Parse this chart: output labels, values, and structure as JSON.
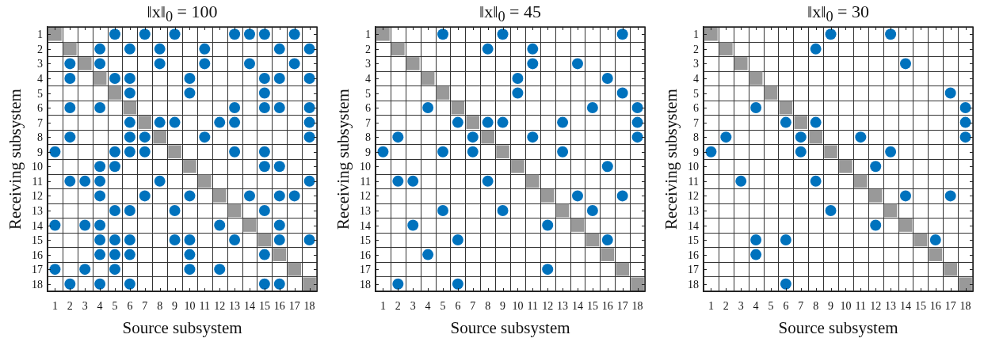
{
  "chart_data": [
    {
      "type": "scatter",
      "title": "‖x‖$_{0}$ = 100",
      "xlabel": "Source subsystem",
      "ylabel": "Receiving subsystem",
      "xlim": [
        0.5,
        18.5
      ],
      "ylim": [
        18.5,
        0.5
      ],
      "xticks": [
        {
          "value": 0.5,
          "label": null
        },
        1,
        {
          "value": 1.5,
          "label": null
        },
        2,
        {
          "value": 2.5,
          "label": null
        },
        3,
        {
          "value": 3.5,
          "label": null
        },
        4,
        {
          "value": 4.5,
          "label": null
        },
        5,
        {
          "value": 5.5,
          "label": null
        },
        6,
        {
          "value": 6.5,
          "label": null
        },
        7,
        {
          "value": 7.5,
          "label": null
        },
        8,
        {
          "value": 8.5,
          "label": null
        },
        9,
        {
          "value": 9.5,
          "label": null
        },
        10,
        {
          "value": 10.5,
          "label": null
        },
        11,
        {
          "value": 11.5,
          "label": null
        },
        12,
        {
          "value": 12.5,
          "label": null
        },
        13,
        {
          "value": 13.5,
          "label": null
        },
        14,
        {
          "value": 14.5,
          "label": null
        },
        15,
        {
          "value": 15.5,
          "label": null
        },
        16,
        {
          "value": 16.5,
          "label": null
        },
        17,
        {
          "value": 17.5,
          "label": null
        },
        18,
        {
          "value": 18.5,
          "label": null
        }
      ],
      "yticks": [
        {
          "value": 0.5,
          "label": null
        },
        1,
        {
          "value": 1.5,
          "label": null
        },
        2,
        {
          "value": 2.5,
          "label": null
        },
        3,
        {
          "value": 3.5,
          "label": null
        },
        4,
        {
          "value": 4.5,
          "label": null
        },
        5,
        {
          "value": 5.5,
          "label": null
        },
        6,
        {
          "value": 6.5,
          "label": null
        },
        7,
        {
          "value": 7.5,
          "label": null
        },
        8,
        {
          "value": 8.5,
          "label": null
        },
        9,
        {
          "value": 9.5,
          "label": null
        },
        10,
        {
          "value": 10.5,
          "label": null
        },
        11,
        {
          "value": 11.5,
          "label": null
        },
        12,
        {
          "value": 12.5,
          "label": null
        },
        13,
        {
          "value": 13.5,
          "label": null
        },
        14,
        {
          "value": 14.5,
          "label": null
        },
        15,
        {
          "value": 15.5,
          "label": null
        },
        16,
        {
          "value": 16.5,
          "label": null
        },
        17,
        {
          "value": 17.5,
          "label": null
        },
        18,
        {
          "value": 18.5,
          "label": null
        }
      ],
      "grid": true,
      "legend": false,
      "series": [
        {
          "color": "#999999",
          "marker": "square",
          "x": [
            1,
            2,
            3,
            4,
            5,
            6,
            7,
            8,
            9,
            10,
            11,
            12,
            13,
            14,
            15,
            16,
            17,
            18
          ],
          "values": [
            1,
            2,
            3,
            4,
            5,
            6,
            7,
            8,
            9,
            10,
            11,
            12,
            13,
            14,
            15,
            16,
            17,
            18
          ]
        },
        {
          "color": "#0072bd",
          "marker": "circle",
          "x": [
            5,
            7,
            9,
            13,
            14,
            15,
            17,
            4,
            6,
            8,
            11,
            16,
            18,
            2,
            4,
            8,
            11,
            14,
            17,
            2,
            5,
            6,
            10,
            15,
            16,
            18,
            6,
            10,
            15,
            2,
            4,
            13,
            15,
            16,
            18,
            6,
            8,
            9,
            12,
            13,
            18,
            2,
            6,
            7,
            11,
            18,
            1,
            5,
            6,
            7,
            13,
            15,
            4,
            5,
            15,
            16,
            2,
            3,
            4,
            8,
            18,
            4,
            7,
            10,
            14,
            16,
            17,
            5,
            6,
            9,
            15,
            1,
            3,
            4,
            12,
            16,
            4,
            5,
            6,
            9,
            10,
            13,
            16,
            18,
            4,
            5,
            6,
            10,
            15,
            1,
            3,
            5,
            10,
            12,
            2,
            4,
            6,
            15,
            16
          ],
          "values": [
            1,
            1,
            1,
            1,
            1,
            1,
            1,
            2,
            2,
            2,
            2,
            2,
            2,
            3,
            3,
            3,
            3,
            3,
            3,
            4,
            4,
            4,
            4,
            4,
            4,
            4,
            5,
            5,
            5,
            6,
            6,
            6,
            6,
            6,
            6,
            7,
            7,
            7,
            7,
            7,
            7,
            8,
            8,
            8,
            8,
            8,
            9,
            9,
            9,
            9,
            9,
            9,
            10,
            10,
            10,
            10,
            11,
            11,
            11,
            11,
            11,
            12,
            12,
            12,
            12,
            12,
            12,
            13,
            13,
            13,
            13,
            14,
            14,
            14,
            14,
            14,
            15,
            15,
            15,
            15,
            15,
            15,
            15,
            15,
            16,
            16,
            16,
            16,
            16,
            17,
            17,
            17,
            17,
            17,
            18,
            18,
            18,
            18,
            18
          ]
        }
      ]
    },
    {
      "type": "scatter",
      "title": "‖x‖$_{0}$ = 45",
      "xlabel": "Source subsystem",
      "ylabel": "Receiving subsystem",
      "xlim": [
        0.5,
        18.5
      ],
      "ylim": [
        18.5,
        0.5
      ],
      "xticks": [
        {
          "value": 0.5,
          "label": null
        },
        1,
        {
          "value": 1.5,
          "label": null
        },
        2,
        {
          "value": 2.5,
          "label": null
        },
        3,
        {
          "value": 3.5,
          "label": null
        },
        4,
        {
          "value": 4.5,
          "label": null
        },
        5,
        {
          "value": 5.5,
          "label": null
        },
        6,
        {
          "value": 6.5,
          "label": null
        },
        7,
        {
          "value": 7.5,
          "label": null
        },
        8,
        {
          "value": 8.5,
          "label": null
        },
        9,
        {
          "value": 9.5,
          "label": null
        },
        10,
        {
          "value": 10.5,
          "label": null
        },
        11,
        {
          "value": 11.5,
          "label": null
        },
        12,
        {
          "value": 12.5,
          "label": null
        },
        13,
        {
          "value": 13.5,
          "label": null
        },
        14,
        {
          "value": 14.5,
          "label": null
        },
        15,
        {
          "value": 15.5,
          "label": null
        },
        16,
        {
          "value": 16.5,
          "label": null
        },
        17,
        {
          "value": 17.5,
          "label": null
        },
        18,
        {
          "value": 18.5,
          "label": null
        }
      ],
      "yticks": [
        {
          "value": 0.5,
          "label": null
        },
        1,
        {
          "value": 1.5,
          "label": null
        },
        2,
        {
          "value": 2.5,
          "label": null
        },
        3,
        {
          "value": 3.5,
          "label": null
        },
        4,
        {
          "value": 4.5,
          "label": null
        },
        5,
        {
          "value": 5.5,
          "label": null
        },
        6,
        {
          "value": 6.5,
          "label": null
        },
        7,
        {
          "value": 7.5,
          "label": null
        },
        8,
        {
          "value": 8.5,
          "label": null
        },
        9,
        {
          "value": 9.5,
          "label": null
        },
        10,
        {
          "value": 10.5,
          "label": null
        },
        11,
        {
          "value": 11.5,
          "label": null
        },
        12,
        {
          "value": 12.5,
          "label": null
        },
        13,
        {
          "value": 13.5,
          "label": null
        },
        14,
        {
          "value": 14.5,
          "label": null
        },
        15,
        {
          "value": 15.5,
          "label": null
        },
        16,
        {
          "value": 16.5,
          "label": null
        },
        17,
        {
          "value": 17.5,
          "label": null
        },
        18,
        {
          "value": 18.5,
          "label": null
        }
      ],
      "grid": true,
      "legend": false,
      "series": [
        {
          "color": "#999999",
          "marker": "square",
          "x": [
            1,
            2,
            3,
            4,
            5,
            6,
            7,
            8,
            9,
            10,
            11,
            12,
            13,
            14,
            15,
            16,
            17,
            18
          ],
          "values": [
            1,
            2,
            3,
            4,
            5,
            6,
            7,
            8,
            9,
            10,
            11,
            12,
            13,
            14,
            15,
            16,
            17,
            18
          ]
        },
        {
          "color": "#0072bd",
          "marker": "circle",
          "x": [
            5,
            9,
            17,
            8,
            11,
            11,
            14,
            10,
            16,
            10,
            17,
            4,
            15,
            18,
            6,
            8,
            9,
            13,
            18,
            2,
            7,
            11,
            18,
            1,
            5,
            7,
            13,
            16,
            2,
            3,
            8,
            14,
            17,
            5,
            9,
            15,
            3,
            12,
            6,
            16,
            4,
            12,
            2,
            6
          ],
          "values": [
            1,
            1,
            1,
            2,
            2,
            3,
            3,
            4,
            4,
            5,
            5,
            6,
            6,
            6,
            7,
            7,
            7,
            7,
            7,
            8,
            8,
            8,
            8,
            9,
            9,
            9,
            9,
            10,
            11,
            11,
            11,
            12,
            12,
            13,
            13,
            13,
            14,
            14,
            15,
            15,
            16,
            17,
            18,
            18
          ]
        }
      ]
    },
    {
      "type": "scatter",
      "title": "‖x‖$_{0}$ = 30",
      "xlabel": "Source subsystem",
      "ylabel": "Receiving subsystem",
      "xlim": [
        0.5,
        18.5
      ],
      "ylim": [
        18.5,
        0.5
      ],
      "xticks": [
        {
          "value": 0.5,
          "label": null
        },
        1,
        {
          "value": 1.5,
          "label": null
        },
        2,
        {
          "value": 2.5,
          "label": null
        },
        3,
        {
          "value": 3.5,
          "label": null
        },
        4,
        {
          "value": 4.5,
          "label": null
        },
        5,
        {
          "value": 5.5,
          "label": null
        },
        6,
        {
          "value": 6.5,
          "label": null
        },
        7,
        {
          "value": 7.5,
          "label": null
        },
        8,
        {
          "value": 8.5,
          "label": null
        },
        9,
        {
          "value": 9.5,
          "label": null
        },
        10,
        {
          "value": 10.5,
          "label": null
        },
        11,
        {
          "value": 11.5,
          "label": null
        },
        12,
        {
          "value": 12.5,
          "label": null
        },
        13,
        {
          "value": 13.5,
          "label": null
        },
        14,
        {
          "value": 14.5,
          "label": null
        },
        15,
        {
          "value": 15.5,
          "label": null
        },
        16,
        {
          "value": 16.5,
          "label": null
        },
        17,
        {
          "value": 17.5,
          "label": null
        },
        18,
        {
          "value": 18.5,
          "label": null
        }
      ],
      "yticks": [
        {
          "value": 0.5,
          "label": null
        },
        1,
        {
          "value": 1.5,
          "label": null
        },
        2,
        {
          "value": 2.5,
          "label": null
        },
        3,
        {
          "value": 3.5,
          "label": null
        },
        4,
        {
          "value": 4.5,
          "label": null
        },
        5,
        {
          "value": 5.5,
          "label": null
        },
        6,
        {
          "value": 6.5,
          "label": null
        },
        7,
        {
          "value": 7.5,
          "label": null
        },
        8,
        {
          "value": 8.5,
          "label": null
        },
        9,
        {
          "value": 9.5,
          "label": null
        },
        10,
        {
          "value": 10.5,
          "label": null
        },
        11,
        {
          "value": 11.5,
          "label": null
        },
        12,
        {
          "value": 12.5,
          "label": null
        },
        13,
        {
          "value": 13.5,
          "label": null
        },
        14,
        {
          "value": 14.5,
          "label": null
        },
        15,
        {
          "value": 15.5,
          "label": null
        },
        16,
        {
          "value": 16.5,
          "label": null
        },
        17,
        {
          "value": 17.5,
          "label": null
        },
        18,
        {
          "value": 18.5,
          "label": null
        }
      ],
      "grid": true,
      "legend": false,
      "series": [
        {
          "color": "#999999",
          "marker": "square",
          "x": [
            1,
            2,
            3,
            4,
            5,
            6,
            7,
            8,
            9,
            10,
            11,
            12,
            13,
            14,
            15,
            16,
            17,
            18
          ],
          "values": [
            1,
            2,
            3,
            4,
            5,
            6,
            7,
            8,
            9,
            10,
            11,
            12,
            13,
            14,
            15,
            16,
            17,
            18
          ]
        },
        {
          "color": "#0072bd",
          "marker": "circle",
          "x": [
            9,
            13,
            8,
            14,
            17,
            4,
            18,
            6,
            8,
            18,
            2,
            7,
            11,
            18,
            1,
            7,
            13,
            12,
            3,
            8,
            14,
            17,
            9,
            12,
            4,
            6,
            16,
            4,
            6
          ],
          "values": [
            1,
            1,
            2,
            3,
            5,
            6,
            6,
            7,
            7,
            7,
            8,
            8,
            8,
            8,
            9,
            9,
            9,
            10,
            11,
            11,
            12,
            12,
            13,
            14,
            15,
            15,
            15,
            16,
            18
          ]
        }
      ]
    }
  ]
}
